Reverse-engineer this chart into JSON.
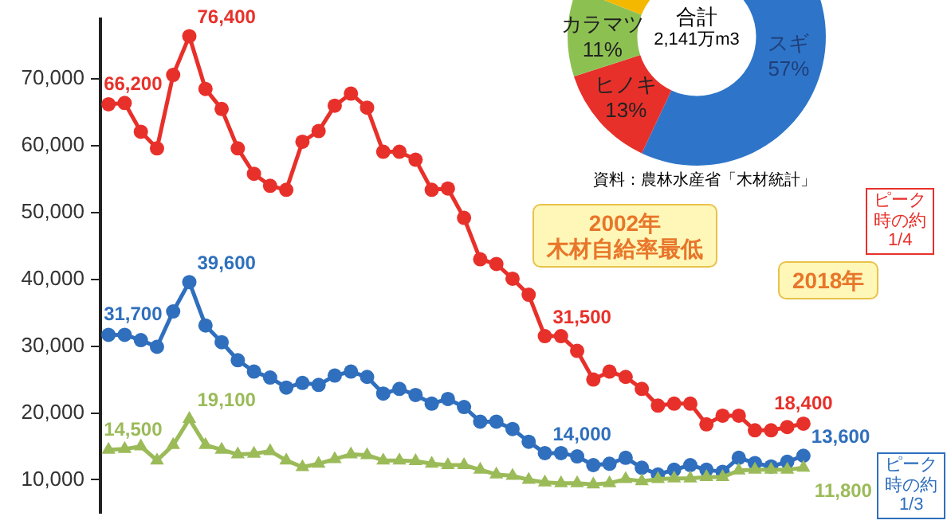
{
  "chart_data": [
    {
      "type": "line",
      "categories": [
        null,
        null,
        null,
        null,
        null,
        null,
        null,
        null,
        null,
        null,
        null,
        null,
        null,
        null,
        null,
        null,
        null,
        null,
        null,
        null,
        null,
        null,
        null,
        null,
        null,
        null,
        null,
        null,
        null,
        null,
        null,
        null,
        null,
        null,
        null,
        null,
        null,
        null,
        null,
        null,
        null,
        null,
        null,
        null
      ],
      "ylim": [
        5000,
        79000
      ],
      "yticks": [
        {
          "value": 10000,
          "label": "10,000"
        },
        {
          "value": 20000,
          "label": "20,000"
        },
        {
          "value": 30000,
          "label": "30,000"
        },
        {
          "value": 40000,
          "label": "40,000"
        },
        {
          "value": 50000,
          "label": "50,000"
        },
        {
          "value": 60000,
          "label": "60,000"
        },
        {
          "value": 70000,
          "label": "70,000"
        }
      ],
      "tick_labels": "y",
      "grid": false,
      "legend": false,
      "line_style": "solid",
      "series": [
        {
          "color": "#e8302a",
          "marker": "circle",
          "values": [
            66200,
            66400,
            62100,
            59600,
            70600,
            76400,
            68500,
            65500,
            59600,
            55800,
            54000,
            53400,
            60600,
            62200,
            66000,
            67800,
            65700,
            59100,
            59100,
            57900,
            53400,
            53600,
            49200,
            43000,
            42300,
            40100,
            37700,
            31500,
            31500,
            29300,
            25000,
            26200,
            25400,
            23600,
            21100,
            21400,
            21400,
            18300,
            19600,
            19600,
            17400,
            17400,
            17900,
            18400
          ],
          "value_labels": [
            "66,200",
            null,
            null,
            null,
            null,
            "76,400",
            null,
            null,
            null,
            null,
            null,
            null,
            null,
            null,
            null,
            null,
            null,
            null,
            null,
            null,
            null,
            null,
            null,
            null,
            null,
            null,
            null,
            "31,500",
            null,
            null,
            null,
            null,
            null,
            null,
            null,
            null,
            null,
            null,
            null,
            null,
            null,
            null,
            null,
            "18,400"
          ]
        },
        {
          "color": "#2f6fbd",
          "marker": "circle",
          "values": [
            31700,
            31700,
            30900,
            29900,
            35200,
            39600,
            33100,
            30600,
            27900,
            26200,
            25300,
            23800,
            24500,
            24200,
            25600,
            26200,
            25400,
            22900,
            23600,
            22700,
            21400,
            22100,
            20900,
            18700,
            18700,
            17600,
            15700,
            14000,
            14000,
            13500,
            12200,
            12400,
            13300,
            11800,
            10800,
            11500,
            12200,
            11500,
            11200,
            13300,
            12500,
            12000,
            12700,
            13600
          ],
          "value_labels": [
            "31,700",
            null,
            null,
            null,
            null,
            "39,600",
            null,
            null,
            null,
            null,
            null,
            null,
            null,
            null,
            null,
            null,
            null,
            null,
            null,
            null,
            null,
            null,
            null,
            null,
            null,
            null,
            null,
            "14,000",
            null,
            null,
            null,
            null,
            null,
            null,
            null,
            null,
            null,
            null,
            null,
            null,
            null,
            null,
            null,
            "13,600"
          ]
        },
        {
          "color": "#9bbb59",
          "marker": "triangle",
          "values": [
            14500,
            14600,
            15000,
            12900,
            15200,
            19100,
            15200,
            14500,
            13800,
            13900,
            14300,
            12900,
            11900,
            12400,
            13100,
            13800,
            13700,
            12900,
            12900,
            12800,
            12400,
            12200,
            12200,
            11500,
            10800,
            10600,
            10000,
            9600,
            9500,
            9500,
            9300,
            9500,
            10100,
            9800,
            10100,
            10200,
            10200,
            10400,
            10400,
            11400,
            11500,
            11500,
            11500,
            11800
          ],
          "value_labels": [
            "14,500",
            null,
            null,
            null,
            null,
            "19,100",
            null,
            null,
            null,
            null,
            null,
            null,
            null,
            null,
            null,
            null,
            null,
            null,
            null,
            null,
            null,
            null,
            null,
            null,
            null,
            null,
            null,
            null,
            null,
            null,
            null,
            null,
            null,
            null,
            null,
            null,
            null,
            null,
            null,
            null,
            null,
            null,
            null,
            "11,800"
          ]
        }
      ],
      "annotations": [
        "2002年",
        "木材自給率最低",
        "2018年",
        "ピーク時の約1/4",
        "ピーク時の約1/3"
      ]
    },
    {
      "type": "donut",
      "categories": [
        "スギ",
        "ヒノキ",
        "カラマツ",
        null
      ],
      "values": [
        57,
        13,
        11,
        19
      ],
      "colors": [
        "#2e75c9",
        "#e8302a",
        "#8cc152",
        "#f5b800"
      ],
      "value_labels": [
        "57%",
        "13%",
        "11%",
        null
      ],
      "annotations": [
        "合計",
        "2,141万m3",
        "資料：農林水産省「木材統計」"
      ]
    }
  ]
}
